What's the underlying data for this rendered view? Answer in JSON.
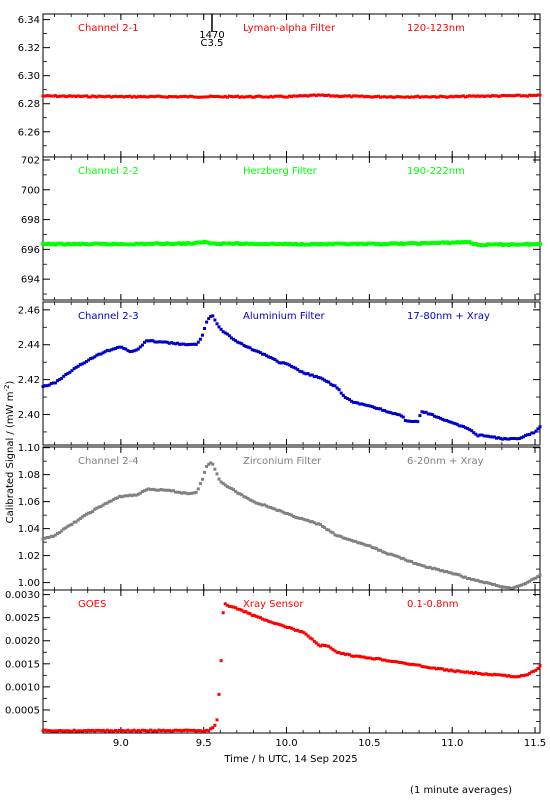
{
  "figure": {
    "xlabel": "Time / h UTC, 14 Sep 2025",
    "ylabel": "Calibrated Signal / (mW m",
    "ylabel_sup": "-2",
    "ylabel_close": ")",
    "footnote": "(1 minute averages)",
    "flare_marker": {
      "x": 9.55,
      "top_label": "1470",
      "bottom_label": "C3.5"
    }
  },
  "chart_data": [
    {
      "type": "scatter",
      "labels": [
        "Channel 2-1",
        "Lyman-alpha Filter",
        "120-123nm"
      ],
      "color": "#ff0000",
      "xlim": [
        8.53,
        11.53
      ],
      "ylim": [
        6.242,
        6.344
      ],
      "yticks": [
        6.26,
        6.28,
        6.3,
        6.32,
        6.34
      ],
      "ytick_labels": [
        "6.26",
        "6.28",
        "6.30",
        "6.32",
        "6.34"
      ],
      "series": [
        {
          "x": [
            8.53,
            9.0,
            9.5,
            10.0,
            10.1,
            10.2,
            10.3,
            10.5,
            11.0,
            11.2,
            11.53
          ],
          "y": [
            6.2855,
            6.285,
            6.285,
            6.285,
            6.2855,
            6.286,
            6.2855,
            6.285,
            6.285,
            6.2855,
            6.2858
          ]
        }
      ]
    },
    {
      "type": "scatter",
      "labels": [
        "Channel 2-2",
        "Herzberg Filter",
        "190-222nm"
      ],
      "color": "#00ff00",
      "xlim": [
        8.53,
        11.53
      ],
      "ylim": [
        692.6,
        702.2
      ],
      "yticks": [
        694,
        696,
        698,
        700,
        702
      ],
      "ytick_labels": [
        "694",
        "696",
        "698",
        "700",
        "702"
      ],
      "series": [
        {
          "x": [
            8.53,
            9.0,
            9.45,
            9.5,
            9.55,
            10.0,
            10.5,
            10.8,
            11.0,
            11.1,
            11.15,
            11.53
          ],
          "y": [
            696.35,
            696.35,
            696.4,
            696.5,
            696.4,
            696.35,
            696.35,
            696.4,
            696.45,
            696.5,
            696.3,
            696.35
          ]
        }
      ]
    },
    {
      "type": "scatter",
      "labels": [
        "Channel 2-3",
        "Aluminium Filter",
        "17-80nm + Xray"
      ],
      "color": "#0000cc",
      "xlim": [
        8.53,
        11.53
      ],
      "ylim": [
        2.3825,
        2.4645
      ],
      "yticks": [
        2.4,
        2.42,
        2.44,
        2.46
      ],
      "ytick_labels": [
        "2.40",
        "2.42",
        "2.44",
        "2.46"
      ],
      "series": [
        {
          "x": [
            8.53,
            8.6,
            8.7,
            8.8,
            8.9,
            9.0,
            9.05,
            9.1,
            9.15,
            9.2,
            9.3,
            9.4,
            9.46,
            9.49,
            9.52,
            9.55,
            9.6,
            9.7,
            9.8,
            9.9,
            9.95,
            10.0,
            10.1,
            10.2,
            10.3,
            10.35,
            10.4,
            10.5,
            10.6,
            10.7,
            10.72,
            10.8,
            10.81,
            10.9,
            11.0,
            11.1,
            11.15,
            11.2,
            11.3,
            11.4,
            11.45,
            11.5,
            11.53
          ],
          "y": [
            2.416,
            2.418,
            2.425,
            2.431,
            2.436,
            2.439,
            2.436,
            2.437,
            2.442,
            2.442,
            2.441,
            2.44,
            2.44,
            2.445,
            2.454,
            2.457,
            2.449,
            2.442,
            2.437,
            2.433,
            2.43,
            2.429,
            2.424,
            2.421,
            2.416,
            2.41,
            2.407,
            2.405,
            2.402,
            2.399,
            2.396,
            2.396,
            2.402,
            2.399,
            2.395,
            2.392,
            2.388,
            2.388,
            2.386,
            2.386,
            2.388,
            2.39,
            2.393
          ]
        }
      ]
    },
    {
      "type": "scatter",
      "labels": [
        "Channel 2-4",
        "Zirconium Filter",
        "6-20nm + Xray"
      ],
      "color": "#808080",
      "xlim": [
        8.53,
        11.53
      ],
      "ylim": [
        0.9945,
        1.1005
      ],
      "yticks": [
        1.0,
        1.02,
        1.04,
        1.06,
        1.08,
        1.1
      ],
      "ytick_labels": [
        "1.00",
        "1.02",
        "1.04",
        "1.06",
        "1.08",
        "1.10"
      ],
      "series": [
        {
          "x": [
            8.53,
            8.6,
            8.7,
            8.8,
            8.9,
            9.0,
            9.1,
            9.15,
            9.2,
            9.3,
            9.4,
            9.46,
            9.49,
            9.52,
            9.55,
            9.6,
            9.7,
            9.8,
            9.9,
            10.0,
            10.1,
            10.2,
            10.3,
            10.4,
            10.5,
            10.6,
            10.7,
            10.8,
            10.9,
            11.0,
            11.1,
            11.2,
            11.3,
            11.35,
            11.4,
            11.45,
            11.5,
            11.53
          ],
          "y": [
            1.032,
            1.035,
            1.043,
            1.051,
            1.058,
            1.064,
            1.065,
            1.069,
            1.069,
            1.068,
            1.066,
            1.067,
            1.076,
            1.087,
            1.089,
            1.075,
            1.067,
            1.06,
            1.056,
            1.051,
            1.047,
            1.043,
            1.035,
            1.031,
            1.027,
            1.022,
            1.018,
            1.013,
            1.01,
            1.007,
            1.003,
            1.0,
            0.997,
            0.996,
            0.997,
            1.0,
            1.003,
            1.006
          ]
        }
      ]
    },
    {
      "type": "scatter",
      "labels": [
        "GOES",
        "Xray Sensor",
        "0.1-0.8nm"
      ],
      "color": "#ff0000",
      "xlim": [
        8.53,
        11.53
      ],
      "ylim": [
        0.0,
        0.0031
      ],
      "xticks": [
        9.0,
        9.5,
        10.0,
        10.5,
        11.0,
        11.5
      ],
      "xtick_labels": [
        "9.0",
        "9.5",
        "10.0",
        "10.5",
        "11.0",
        "11.5"
      ],
      "yticks": [
        0.0005,
        0.001,
        0.0015,
        0.002,
        0.0025,
        0.003
      ],
      "ytick_labels": [
        "0.0005",
        "0.0010",
        "0.0015",
        "0.0020",
        "0.0025",
        "0.0030"
      ],
      "series": [
        {
          "x": [
            8.53,
            9.0,
            9.5,
            9.53,
            9.55,
            9.57,
            9.58,
            9.6,
            9.62,
            9.7,
            9.8,
            9.9,
            10.0,
            10.1,
            10.2,
            10.25,
            10.3,
            10.4,
            10.5,
            10.6,
            10.7,
            10.8,
            10.9,
            11.0,
            11.1,
            11.2,
            11.3,
            11.35,
            11.4,
            11.45,
            11.5,
            11.53
          ],
          "y": [
            5e-05,
            5e-05,
            5e-05,
            5e-05,
            0.0001,
            0.00018,
            0.00028,
            0.00117,
            0.0028,
            0.0027,
            0.00255,
            0.00242,
            0.0023,
            0.00218,
            0.0019,
            0.00188,
            0.00175,
            0.00167,
            0.00163,
            0.00158,
            0.00152,
            0.00146,
            0.0014,
            0.00135,
            0.00131,
            0.00128,
            0.00125,
            0.00123,
            0.00123,
            0.00126,
            0.00135,
            0.00145
          ]
        }
      ]
    }
  ]
}
